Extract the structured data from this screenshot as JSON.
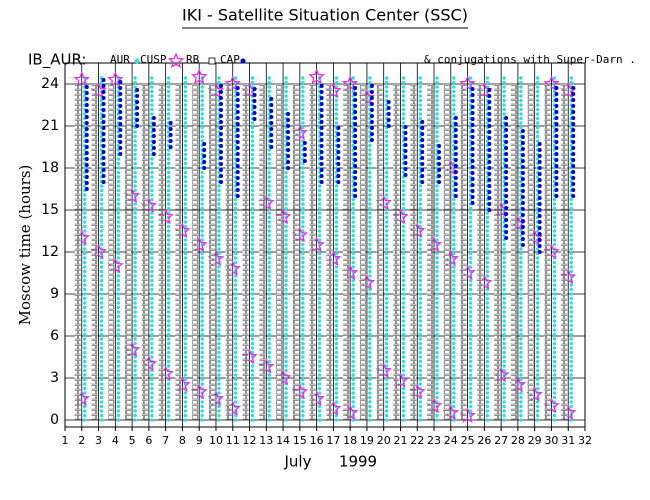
{
  "chart_data": {
    "type": "scatter",
    "title": "IKI - Satellite Situation Center (SSC)",
    "label": "IB_AUR:",
    "annotation": "& conjugations with Super-Darn .",
    "y_label": "Moscow time (hours)",
    "month": "July",
    "year": "1999",
    "xlim": [
      1,
      32
    ],
    "ylim": [
      -0.5,
      25.5
    ],
    "xticks": [
      1,
      2,
      3,
      4,
      5,
      6,
      7,
      8,
      9,
      10,
      11,
      12,
      13,
      14,
      15,
      16,
      17,
      18,
      19,
      20,
      21,
      22,
      23,
      24,
      25,
      26,
      27,
      28,
      29,
      30,
      31,
      32
    ],
    "yticks": [
      0,
      3,
      6,
      9,
      12,
      15,
      18,
      21,
      24
    ],
    "grid": true,
    "series": [
      {
        "name": "AUR",
        "color": "#33dddd",
        "marker": "dot",
        "x": [
          2,
          3,
          4,
          5,
          6,
          7,
          8,
          9,
          10,
          11,
          12,
          13,
          14,
          15,
          16,
          17,
          18,
          19,
          20,
          21,
          22,
          23,
          24,
          25,
          26,
          27,
          28,
          29,
          30,
          31
        ],
        "low": [
          0,
          0,
          0,
          0,
          0,
          0,
          0,
          0,
          0,
          0,
          0,
          0,
          0,
          0,
          0,
          0,
          0,
          0,
          0,
          0,
          0,
          0,
          0,
          0,
          0,
          0,
          0,
          0,
          0,
          0
        ],
        "high": [
          24.5,
          24.5,
          24.5,
          24.5,
          24.5,
          24.5,
          24.5,
          24.5,
          24.5,
          24.5,
          24.5,
          24.5,
          24.5,
          24.5,
          24.5,
          24.5,
          24.5,
          24.5,
          24.5,
          24.5,
          24.5,
          24.5,
          24.5,
          24.5,
          24.5,
          24.5,
          24.5,
          24.5,
          24.5,
          24.5
        ]
      },
      {
        "name": "CUSP",
        "color": "#ee22ee",
        "marker": "star",
        "x": [
          2,
          2,
          2,
          3,
          3,
          4,
          4,
          5,
          5,
          6,
          6,
          7,
          7,
          8,
          8,
          9,
          9,
          9,
          10,
          10,
          10,
          11,
          11,
          11,
          12,
          12,
          13,
          13,
          14,
          14,
          15,
          15,
          15,
          16,
          16,
          16,
          17,
          17,
          17,
          18,
          18,
          18,
          19,
          19,
          20,
          20,
          21,
          21,
          22,
          22,
          23,
          23,
          24,
          24,
          24,
          25,
          25,
          25,
          26,
          26,
          27,
          27,
          28,
          28,
          29,
          29,
          30,
          30,
          30,
          31,
          31,
          31
        ],
        "values": [
          1.5,
          13,
          24.3,
          12,
          23.5,
          11,
          24.3,
          5,
          16,
          4,
          15.3,
          3.3,
          14.5,
          2.5,
          13.5,
          2,
          12.5,
          24.5,
          1.5,
          11.5,
          23.5,
          0.8,
          10.8,
          24,
          4.5,
          23.5,
          3.8,
          15.5,
          3,
          14.5,
          2,
          13.2,
          20.5,
          1.5,
          12.5,
          24.5,
          0.8,
          11.5,
          23.5,
          0.5,
          10.5,
          24,
          9.8,
          23,
          3.5,
          15.5,
          2.8,
          14.5,
          2,
          13.5,
          1,
          12.5,
          0.5,
          11.5,
          18,
          0.3,
          10.5,
          24,
          9.8,
          23.5,
          3.2,
          15,
          2.5,
          14,
          1.8,
          13,
          1,
          12,
          24,
          0.5,
          10.2,
          23.5
        ]
      },
      {
        "name": "RB",
        "color": "#777777",
        "marker": "square",
        "x": [
          2,
          3,
          4,
          5,
          6,
          7,
          8,
          9,
          10,
          11,
          12,
          13,
          14,
          15,
          16,
          17,
          18,
          19,
          20,
          21,
          22,
          23,
          24,
          25,
          26,
          27,
          28,
          29,
          30,
          31
        ],
        "low": [
          0,
          0,
          0,
          0,
          0,
          0,
          0,
          0,
          0,
          0,
          0,
          0,
          0,
          0,
          0,
          0,
          0,
          0,
          0,
          0,
          0,
          0,
          0,
          0,
          0,
          0,
          0,
          0,
          0,
          0
        ],
        "high": [
          24,
          24,
          24,
          24,
          24,
          24,
          24,
          24,
          24,
          24,
          24,
          24,
          24,
          24,
          24,
          24,
          24,
          24,
          24,
          24,
          24,
          24,
          24,
          24,
          24,
          24,
          24,
          24,
          24,
          24
        ]
      },
      {
        "name": "CAP",
        "color": "#0000cc",
        "marker": "dot",
        "x": [
          2,
          3,
          4,
          5,
          6,
          7,
          8,
          9,
          10,
          11,
          12,
          13,
          14,
          15,
          16,
          17,
          18,
          19,
          20,
          21,
          22,
          23,
          24,
          25,
          26,
          27,
          28,
          29,
          30,
          31
        ],
        "low": [
          16.5,
          17,
          19,
          21,
          19,
          19.5,
          null,
          18,
          17,
          16,
          21.5,
          19.5,
          18,
          18.5,
          17,
          17,
          16,
          20,
          21,
          17.5,
          17,
          17,
          16,
          15.5,
          15,
          13,
          12.5,
          12,
          16,
          16
        ],
        "high": [
          24,
          24.5,
          24.5,
          24,
          22,
          21.5,
          null,
          20,
          24,
          24,
          24,
          23,
          22,
          20,
          24,
          21,
          24,
          24,
          23,
          21,
          21.5,
          20,
          22,
          24,
          24,
          22,
          21,
          20,
          24,
          24
        ]
      }
    ]
  }
}
